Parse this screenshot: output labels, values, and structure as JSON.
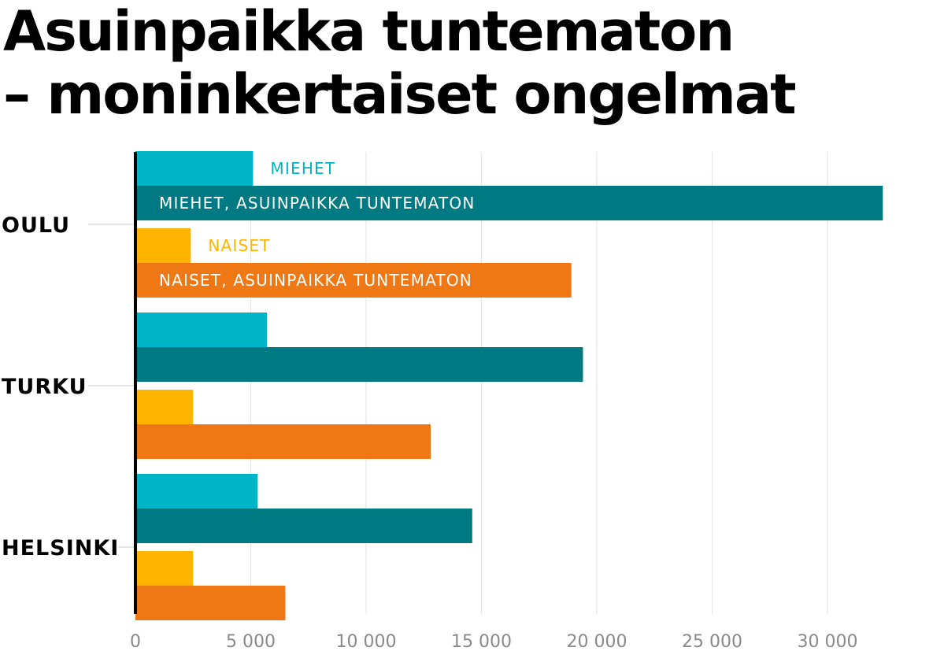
{
  "title_lines": [
    "Asuinpaikka tuntematon",
    "– moninkertaiset ongelmat"
  ],
  "chart_data": {
    "type": "bar",
    "orientation": "horizontal",
    "title": "Asuinpaikka tuntematon – moninkertaiset ongelmat",
    "categories": [
      "OULU",
      "TURKU",
      "HELSINKI"
    ],
    "series": [
      {
        "name": "MIEHET",
        "color": "#00b4c8",
        "values": [
          5100,
          5700,
          5300
        ]
      },
      {
        "name": "MIEHET, ASUINPAIKKA TUNTEMATON",
        "color": "#007a82",
        "values": [
          32400,
          19400,
          14600
        ]
      },
      {
        "name": "NAISET",
        "color": "#ffb400",
        "values": [
          2400,
          2500,
          2500
        ]
      },
      {
        "name": "NAISET, ASUINPAIKKA TUNTEMATON",
        "color": "#f07814",
        "values": [
          18900,
          12800,
          6500
        ]
      }
    ],
    "series_labels_shown_on": "OULU",
    "xlim": [
      0,
      33000
    ],
    "xticks": [
      0,
      5000,
      10000,
      15000,
      20000,
      25000,
      30000
    ],
    "xtick_labels": [
      "0",
      "5 000",
      "10 000",
      "15 000",
      "20 000",
      "25 000",
      "30 000"
    ],
    "grid": true,
    "xlabel": "",
    "ylabel": ""
  }
}
